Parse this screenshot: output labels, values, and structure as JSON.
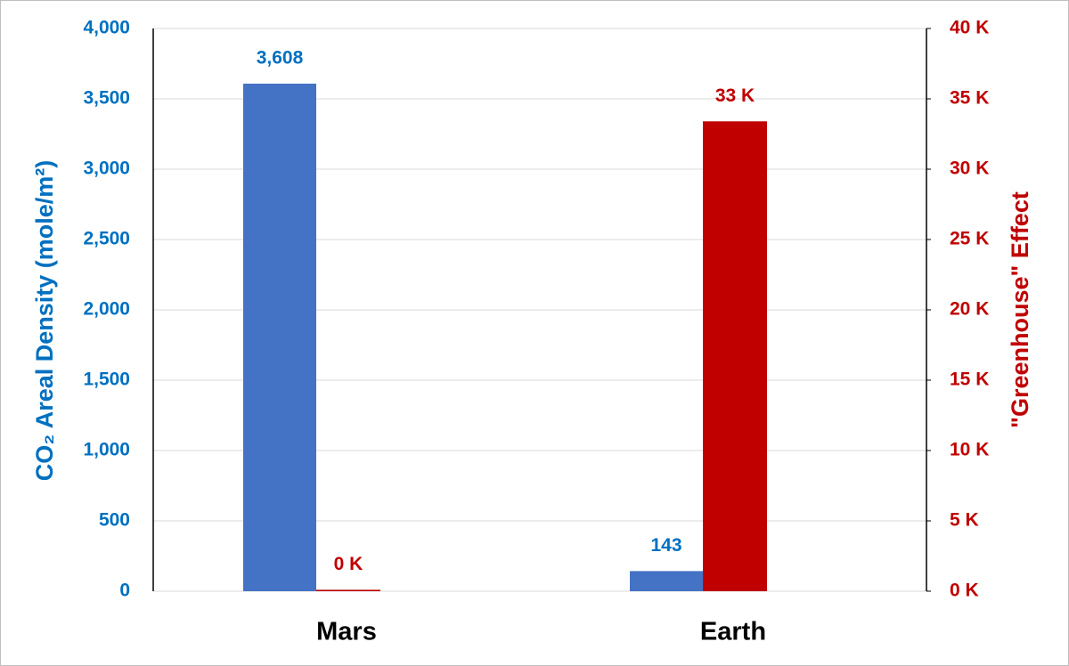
{
  "chart_data": {
    "type": "bar",
    "categories": [
      "Mars",
      "Earth"
    ],
    "series": [
      {
        "color": "#4472c4",
        "values": [
          3608,
          143
        ],
        "value_labels": [
          "3,608",
          "143"
        ]
      },
      {
        "color": "#c00000",
        "axis": "y2",
        "values": [
          0.1,
          33.4
        ],
        "value_labels": [
          "0 K",
          "33 K"
        ]
      }
    ],
    "ylabel": "CO₂ Areal Density (mole/m²)",
    "y2label": "\"Greenhouse\"  Effect",
    "ylim": [
      0,
      4000
    ],
    "yticks": [
      0,
      500,
      {
        "value": 1000,
        "label": "1,000"
      },
      {
        "value": 1500,
        "label": "1,500"
      },
      {
        "value": 2000,
        "label": "2,000"
      },
      {
        "value": 2500,
        "label": "2,500"
      },
      {
        "value": 3000,
        "label": "3,000"
      },
      {
        "value": 3500,
        "label": "3,500"
      },
      {
        "value": 4000,
        "label": "4,000"
      }
    ],
    "y2lim": [
      0,
      40
    ],
    "y2ticks": [
      {
        "value": 0,
        "label": "0 K"
      },
      {
        "value": 5,
        "label": "5 K"
      },
      {
        "value": 10,
        "label": "10 K"
      },
      {
        "value": 15,
        "label": "15 K"
      },
      {
        "value": 20,
        "label": "20 K"
      },
      {
        "value": 25,
        "label": "25 K"
      },
      {
        "value": 30,
        "label": "30 K"
      },
      {
        "value": 35,
        "label": "35 K"
      },
      {
        "value": 40,
        "label": "40 K"
      }
    ],
    "grid": true,
    "ycolor": "#0070c0",
    "y2color": "#c00000"
  }
}
